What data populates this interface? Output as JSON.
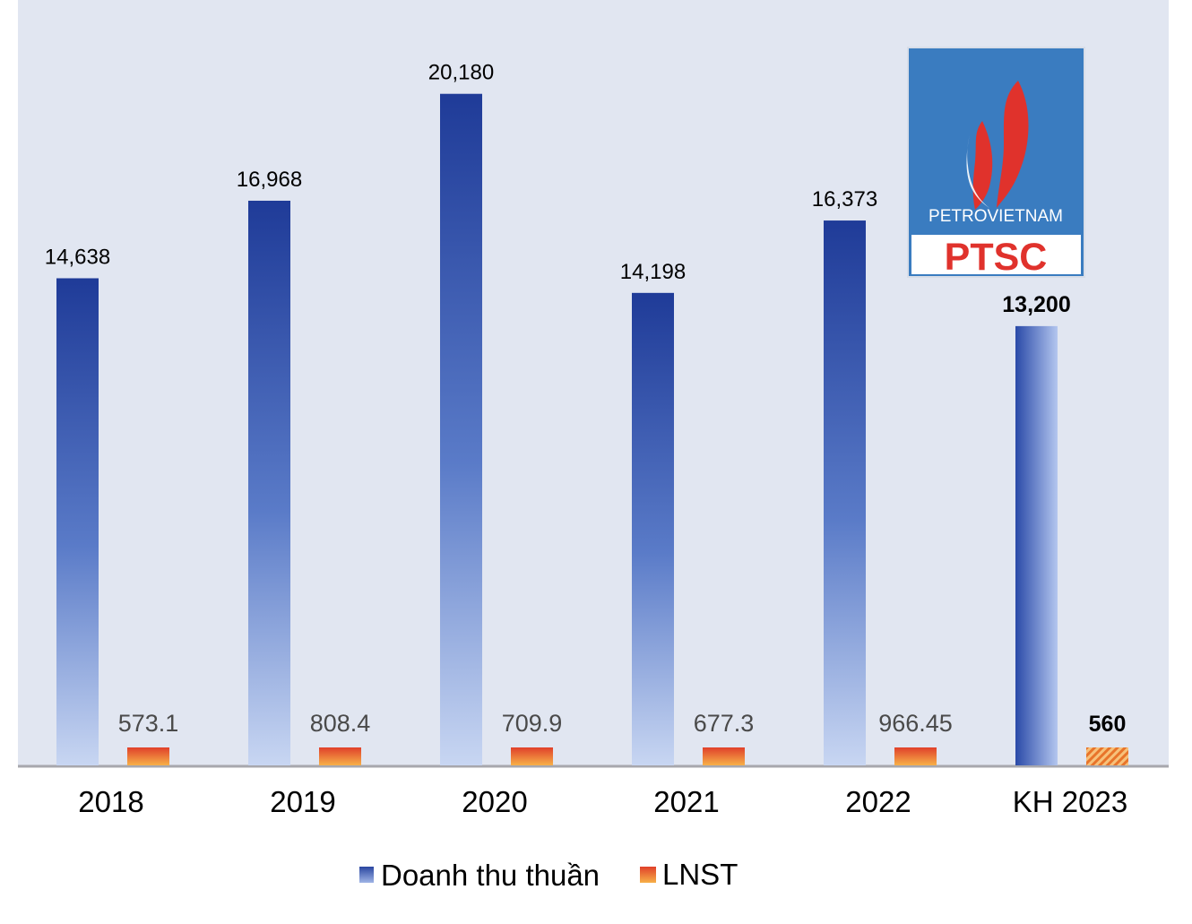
{
  "chart_data": {
    "type": "bar",
    "categories": [
      "2018",
      "2019",
      "2020",
      "2021",
      "2022",
      "KH 2023"
    ],
    "series": [
      {
        "name": "Doanh thu thuần",
        "values": [
          14638,
          16968,
          20180,
          14198,
          16373,
          13200
        ],
        "labels": [
          "14,638",
          "16,968",
          "20,180",
          "14,198",
          "16,373",
          "13,200"
        ],
        "color": "#2a46a0"
      },
      {
        "name": "LNST",
        "values": [
          573.1,
          808.4,
          709.9,
          677.3,
          966.45,
          560
        ],
        "labels": [
          "573.1",
          "808.4",
          "709.9",
          "677.3",
          "966.45",
          "560"
        ],
        "color": "#e8542a"
      }
    ],
    "plan_category": "KH 2023",
    "ylim": [
      0,
      23000
    ],
    "grid": false,
    "legend_position": "bottom",
    "background_color": "#e1e6f1"
  },
  "logo": {
    "brand_line": "PETROVIETNAM",
    "company": "PTSC",
    "colors": {
      "blue": "#3a7cc0",
      "red": "#e0322c",
      "white": "#ffffff"
    }
  }
}
